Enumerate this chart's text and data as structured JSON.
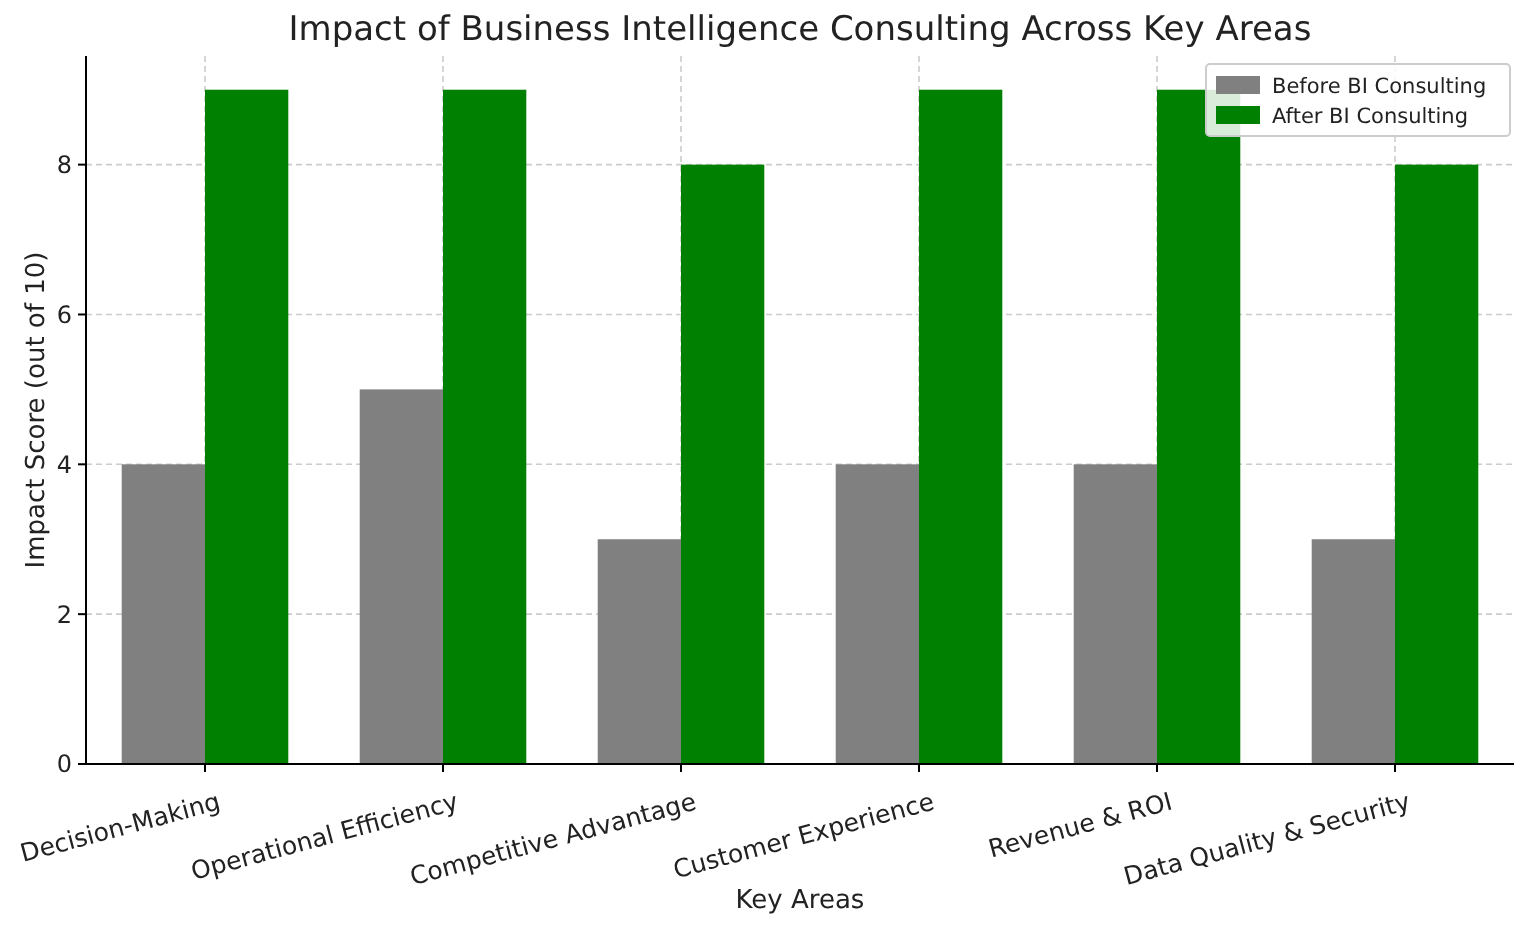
{
  "chart_data": {
    "type": "bar",
    "title": "Impact of Business Intelligence Consulting Across Key Areas",
    "xlabel": "Key Areas",
    "ylabel": "Impact Score (out of 10)",
    "categories": [
      "Decision-Making",
      "Operational Efficiency",
      "Competitive Advantage",
      "Customer Experience",
      "Revenue & ROI",
      "Data Quality & Security"
    ],
    "series": [
      {
        "name": "Before BI Consulting",
        "color": "#808080",
        "values": [
          4,
          5,
          3,
          4,
          4,
          3
        ]
      },
      {
        "name": "After BI Consulting",
        "color": "#008000",
        "values": [
          9,
          9,
          8,
          9,
          9,
          8
        ]
      }
    ],
    "ylim": [
      0,
      9.45
    ],
    "yticks": [
      0,
      2,
      4,
      6,
      8
    ],
    "grid": true,
    "legend": "top right"
  }
}
